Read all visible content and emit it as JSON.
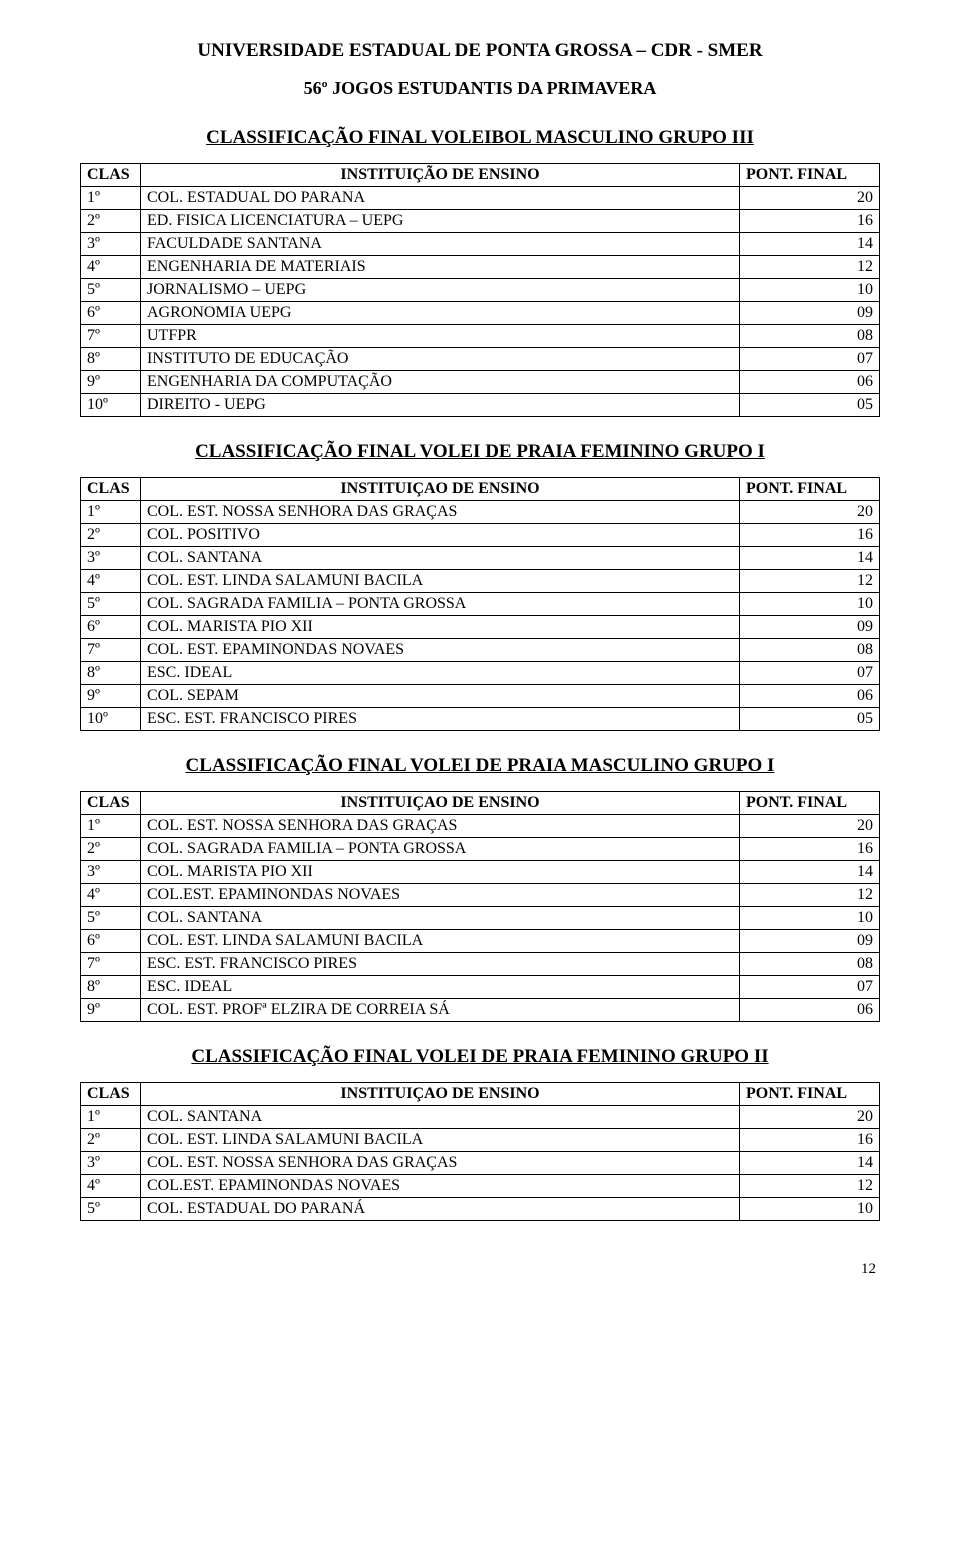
{
  "header": {
    "line1": "UNIVERSIDADE ESTADUAL DE PONTA GROSSA – CDR - SMER",
    "line2": "56º JOGOS ESTUDANTIS DA PRIMAVERA"
  },
  "page_number": "12",
  "columns": {
    "clas": "CLAS",
    "inst": "INSTITUIÇÃO DE ENSINO",
    "inst_alt": "INSTITUIÇAO DE ENSINO",
    "pont": "PONT. FINAL"
  },
  "sections": [
    {
      "title": "CLASSIFICAÇÃO FINAL VOLEIBOL MASCULINO GRUPO III",
      "header_inst_key": "inst",
      "rows": [
        {
          "pos": "1º",
          "name": "COL. ESTADUAL DO PARANA",
          "pts": "20"
        },
        {
          "pos": "2º",
          "name": "ED. FISICA LICENCIATURA – UEPG",
          "pts": "16"
        },
        {
          "pos": "3º",
          "name": "FACULDADE SANTANA",
          "pts": "14"
        },
        {
          "pos": "4º",
          "name": "ENGENHARIA DE MATERIAIS",
          "pts": "12"
        },
        {
          "pos": "5º",
          "name": "JORNALISMO – UEPG",
          "pts": "10"
        },
        {
          "pos": "6º",
          "name": "AGRONOMIA UEPG",
          "pts": "09"
        },
        {
          "pos": "7º",
          "name": "UTFPR",
          "pts": "08"
        },
        {
          "pos": "8º",
          "name": "INSTITUTO DE EDUCAÇÃO",
          "pts": "07"
        },
        {
          "pos": "9º",
          "name": "ENGENHARIA DA COMPUTAÇÃO",
          "pts": "06"
        },
        {
          "pos": "10º",
          "name": "DIREITO - UEPG",
          "pts": "05"
        }
      ]
    },
    {
      "title": "CLASSIFICAÇÃO FINAL VOLEI DE PRAIA FEMININO GRUPO I",
      "header_inst_key": "inst_alt",
      "rows": [
        {
          "pos": "1º",
          "name": "COL. EST. NOSSA SENHORA DAS GRAÇAS",
          "pts": "20"
        },
        {
          "pos": "2º",
          "name": "COL. POSITIVO",
          "pts": "16"
        },
        {
          "pos": "3º",
          "name": "COL. SANTANA",
          "pts": "14"
        },
        {
          "pos": "4º",
          "name": "COL. EST. LINDA SALAMUNI BACILA",
          "pts": "12"
        },
        {
          "pos": "5º",
          "name": "COL. SAGRADA FAMILIA – PONTA GROSSA",
          "pts": "10"
        },
        {
          "pos": "6º",
          "name": "COL. MARISTA PIO XII",
          "pts": "09"
        },
        {
          "pos": "7º",
          "name": "COL. EST. EPAMINONDAS NOVAES",
          "pts": "08"
        },
        {
          "pos": "8º",
          "name": "ESC. IDEAL",
          "pts": "07"
        },
        {
          "pos": "9º",
          "name": "COL. SEPAM",
          "pts": "06"
        },
        {
          "pos": "10º",
          "name": "ESC. EST. FRANCISCO PIRES",
          "pts": "05"
        }
      ]
    },
    {
      "title": "CLASSIFICAÇÃO FINAL VOLEI DE PRAIA MASCULINO GRUPO I",
      "header_inst_key": "inst_alt",
      "rows": [
        {
          "pos": "1º",
          "name": "COL. EST. NOSSA SENHORA DAS GRAÇAS",
          "pts": "20"
        },
        {
          "pos": "2º",
          "name": "COL. SAGRADA FAMILIA – PONTA GROSSA",
          "pts": "16"
        },
        {
          "pos": "3º",
          "name": "COL. MARISTA PIO XII",
          "pts": "14"
        },
        {
          "pos": "4º",
          "name": "COL.EST. EPAMINONDAS NOVAES",
          "pts": "12"
        },
        {
          "pos": "5º",
          "name": "COL. SANTANA",
          "pts": "10"
        },
        {
          "pos": "6º",
          "name": "COL.  EST. LINDA SALAMUNI BACILA",
          "pts": "09"
        },
        {
          "pos": "7º",
          "name": "ESC. EST.  FRANCISCO PIRES",
          "pts": "08"
        },
        {
          "pos": "8º",
          "name": "ESC. IDEAL",
          "pts": "07"
        },
        {
          "pos": "9º",
          "name": "COL. EST. PROFª ELZIRA DE CORREIA SÁ",
          "pts": "06"
        }
      ]
    },
    {
      "title": "CLASSIFICAÇÃO FINAL VOLEI DE PRAIA FEMININO GRUPO II",
      "header_inst_key": "inst_alt",
      "rows": [
        {
          "pos": "1º",
          "name": "COL. SANTANA",
          "pts": "20"
        },
        {
          "pos": "2º",
          "name": "COL. EST. LINDA SALAMUNI BACILA",
          "pts": "16"
        },
        {
          "pos": "3º",
          "name": "COL. EST. NOSSA SENHORA DAS GRAÇAS",
          "pts": "14"
        },
        {
          "pos": "4º",
          "name": "COL.EST.  EPAMINONDAS NOVAES",
          "pts": "12"
        },
        {
          "pos": "5º",
          "name": "COL. ESTADUAL DO PARANÁ",
          "pts": "10"
        }
      ]
    }
  ]
}
